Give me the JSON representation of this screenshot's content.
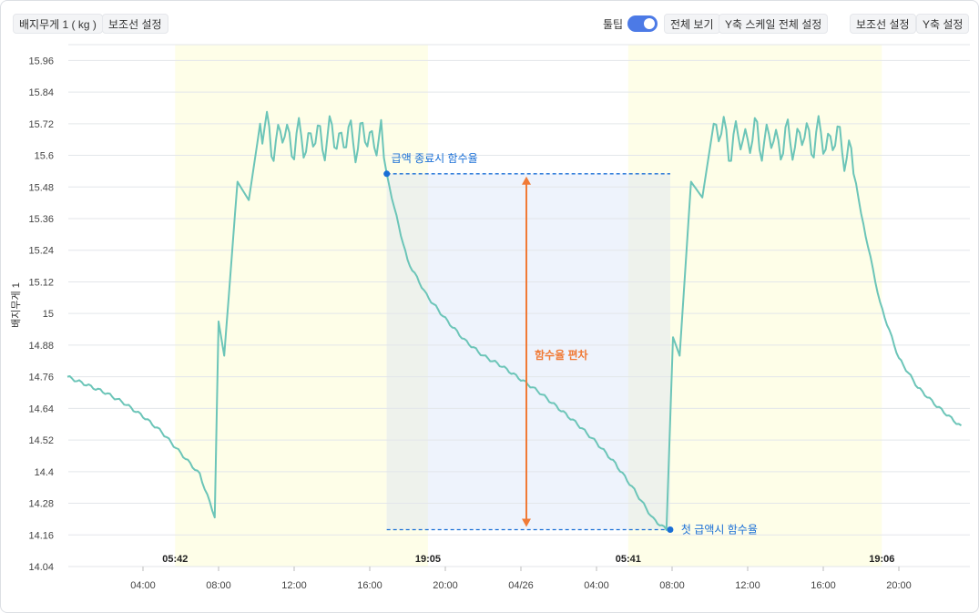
{
  "toolbar": {
    "left_y_label": "배지무게 1 ( kg )",
    "left_guide": "보조선 설정",
    "tooltip": "툴팁",
    "tooltip_on": true,
    "view_all": "전체 보기",
    "y_scale_all": "Y축 스케일 전체 설정",
    "right_guide": "보조선 설정",
    "y_setting": "Y축 설정"
  },
  "chart_data": {
    "type": "line",
    "ylabel": "배지무게 1",
    "ylim": [
      14.04,
      16.02
    ],
    "yticks": [
      "14.04",
      "14.16",
      "14.28",
      "14.4",
      "14.52",
      "14.64",
      "14.76",
      "14.88",
      "15",
      "15.12",
      "15.24",
      "15.36",
      "15.48",
      "15.6",
      "15.72",
      "15.84",
      "15.96"
    ],
    "xticks": [
      "04:00",
      "08:00",
      "12:00",
      "16:00",
      "20:00",
      "04/26",
      "04:00",
      "08:00",
      "12:00",
      "16:00",
      "20:00"
    ],
    "xtick_hours": [
      4,
      8,
      12,
      16,
      20,
      24,
      28,
      32,
      36,
      40,
      44
    ],
    "xlim_hours": [
      0,
      47.3
    ],
    "grid": true,
    "day_markers": [
      {
        "label": "05:42",
        "hour": 5.7
      },
      {
        "label": "19:05",
        "hour": 19.08
      },
      {
        "label": "05:41",
        "hour": 29.68
      },
      {
        "label": "19:06",
        "hour": 43.1
      }
    ],
    "day_periods": [
      [
        5.7,
        19.08
      ],
      [
        29.68,
        43.1
      ]
    ],
    "series": [
      {
        "color": "#6cc5b8",
        "x": [
          0,
          1,
          2,
          3,
          4,
          5,
          6,
          7,
          7.8,
          8.0,
          8.3,
          9.0,
          9.6,
          10.2,
          10.8,
          11.5,
          12,
          13,
          14,
          15,
          16,
          16.6,
          16.9,
          17.3,
          18,
          19,
          20,
          21,
          22,
          23,
          24,
          25,
          26,
          27,
          28,
          29,
          30,
          31,
          31.7,
          32.05,
          32.4,
          33,
          33.6,
          34.2,
          35,
          36,
          37,
          38,
          39,
          40,
          41,
          41.6,
          42,
          43,
          44,
          45,
          46,
          47.3
        ],
        "y": [
          14.76,
          14.73,
          14.7,
          14.66,
          14.61,
          14.55,
          14.47,
          14.39,
          14.23,
          14.97,
          14.84,
          15.5,
          15.43,
          15.72,
          15.65,
          15.68,
          15.65,
          15.66,
          15.67,
          15.66,
          15.67,
          15.65,
          15.53,
          15.4,
          15.2,
          15.07,
          14.98,
          14.9,
          14.84,
          14.8,
          14.75,
          14.7,
          14.64,
          14.58,
          14.51,
          14.43,
          14.33,
          14.22,
          14.18,
          14.91,
          14.84,
          15.5,
          15.44,
          15.72,
          15.65,
          15.67,
          15.66,
          15.65,
          15.67,
          15.66,
          15.65,
          15.55,
          15.38,
          15.04,
          14.83,
          14.72,
          14.65,
          14.57
        ]
      }
    ],
    "annotations": {
      "end_label": "급액 종료시 함수율",
      "end_point": {
        "hour": 16.9,
        "value": 15.53
      },
      "first_label": "첫 급액시 함수율",
      "first_point": {
        "hour": 31.9,
        "value": 14.18
      },
      "deviation_label": "함수율 편차"
    },
    "colors": {
      "line": "#6cc5b8",
      "day_band": "#fefee8",
      "deviation_band": "#eef3fc",
      "overlap_band": "#eef2ec",
      "annotation_blue": "#1a6fd6",
      "deviation_arrow": "#f07a36"
    }
  }
}
